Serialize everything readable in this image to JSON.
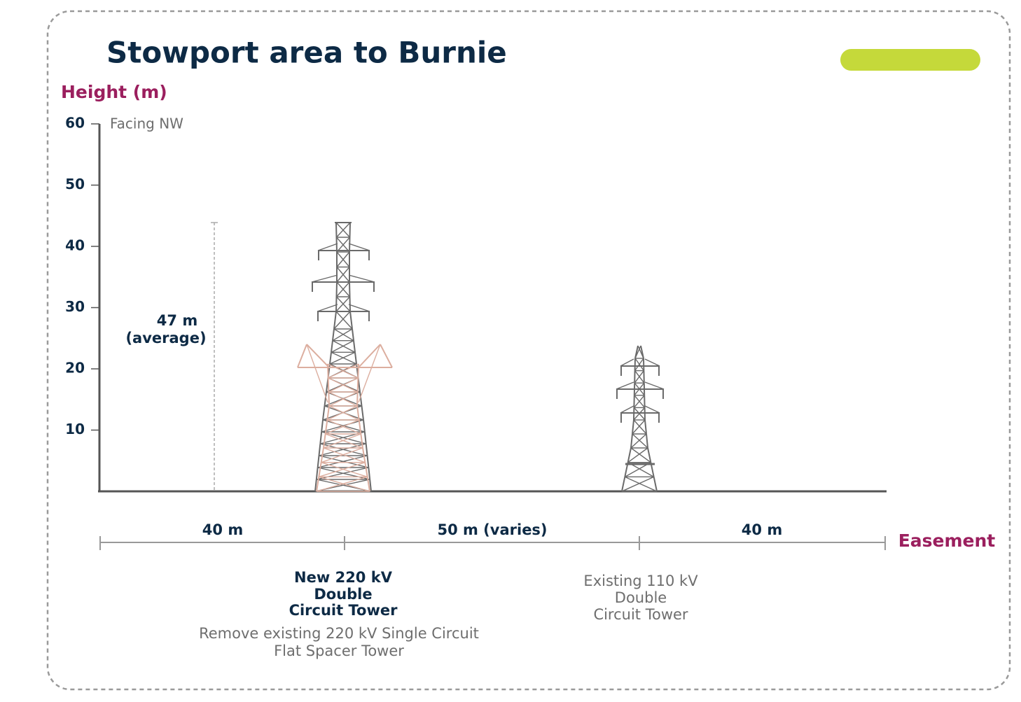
{
  "header": {
    "title": "Stowport area to Burnie"
  },
  "axis": {
    "label": "Height (m)",
    "ylim": [
      0,
      60
    ],
    "yticks": [
      10,
      20,
      30,
      40,
      50,
      60
    ],
    "note": "Facing NW"
  },
  "annotation": {
    "lines": [
      "47 m",
      "(average)"
    ]
  },
  "easement": {
    "label": "Easement",
    "segments": [
      "40 m",
      "50 m (varies)",
      "40 m"
    ]
  },
  "towers": [
    {
      "lines": [
        "New 220 kV",
        "Double",
        "Circuit Tower"
      ],
      "note": [
        "Remove existing 220 kV Single Circuit",
        "Flat Spacer Tower"
      ]
    },
    {
      "lines": [
        "Existing 110 kV",
        "Double",
        "Circuit Tower"
      ]
    }
  ]
}
